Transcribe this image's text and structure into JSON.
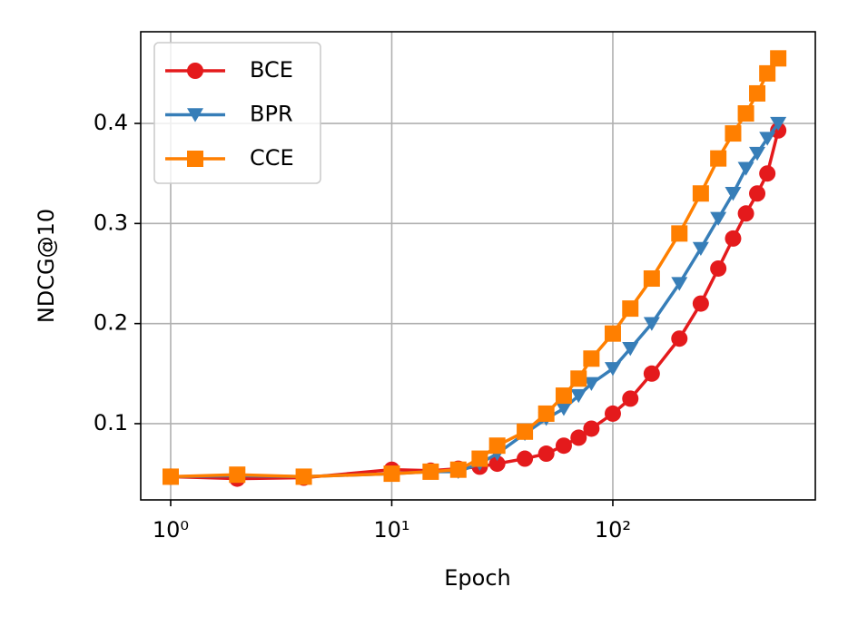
{
  "chart_data": {
    "type": "line",
    "xlabel": "Epoch",
    "ylabel": "NDCG@10",
    "xscale": "log",
    "grid": true,
    "legend": "upper left",
    "x": [
      1,
      2,
      4,
      10,
      15,
      20,
      25,
      30,
      40,
      50,
      60,
      70,
      80,
      100,
      120,
      150,
      200,
      250,
      300,
      350,
      400,
      450,
      500,
      560
    ],
    "series": [
      {
        "name": "BCE",
        "color": "#e41a1c",
        "marker": "circle",
        "values": [
          0.047,
          0.045,
          0.046,
          0.054,
          0.053,
          0.055,
          0.057,
          0.06,
          0.065,
          0.07,
          0.078,
          0.086,
          0.095,
          0.11,
          0.125,
          0.15,
          0.185,
          0.22,
          0.255,
          0.285,
          0.31,
          0.33,
          0.35,
          0.393
        ]
      },
      {
        "name": "BPR",
        "color": "#377eb8",
        "marker": "triangle-down",
        "values": [
          0.047,
          0.048,
          0.047,
          0.05,
          0.052,
          0.052,
          0.06,
          0.07,
          0.09,
          0.105,
          0.115,
          0.128,
          0.14,
          0.155,
          0.175,
          0.2,
          0.24,
          0.275,
          0.305,
          0.33,
          0.355,
          0.37,
          0.385,
          0.4
        ]
      },
      {
        "name": "CCE",
        "color": "#ff7f00",
        "marker": "square",
        "values": [
          0.047,
          0.049,
          0.047,
          0.05,
          0.052,
          0.054,
          0.065,
          0.078,
          0.092,
          0.11,
          0.128,
          0.145,
          0.165,
          0.19,
          0.215,
          0.245,
          0.29,
          0.33,
          0.365,
          0.39,
          0.41,
          0.43,
          0.45,
          0.465
        ]
      }
    ],
    "xlim": [
      0.732,
      824
    ],
    "xticks": [
      {
        "value": 1,
        "label": "10⁰"
      },
      {
        "value": 10,
        "label": "10¹"
      },
      {
        "value": 100,
        "label": "10²"
      }
    ],
    "ylim": [
      0.0238,
      0.4916
    ],
    "yticks": [
      0.1,
      0.2,
      0.3,
      0.4
    ]
  }
}
